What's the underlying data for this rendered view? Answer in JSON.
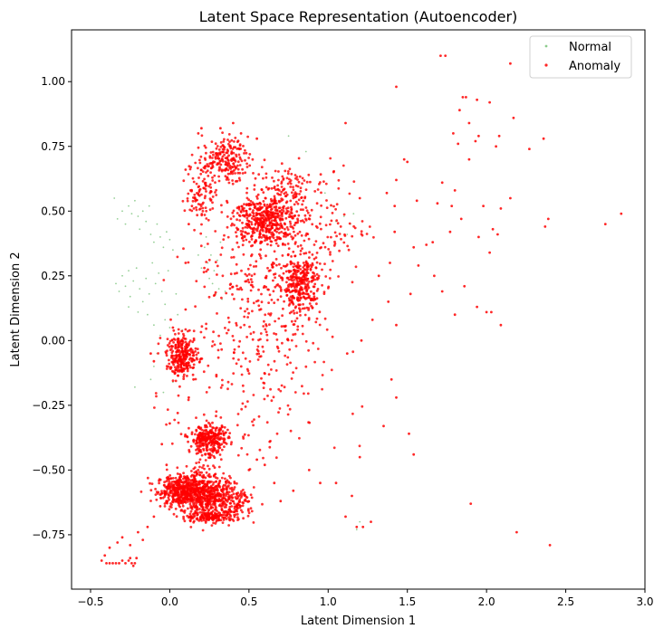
{
  "chart_data": {
    "type": "scatter",
    "title": "Latent Space Representation (Autoencoder)",
    "xlabel": "Latent Dimension 1",
    "ylabel": "Latent Dimension 2",
    "xlim": [
      -0.62,
      3.0
    ],
    "ylim": [
      -0.96,
      1.2
    ],
    "xticks": [
      -0.5,
      0.0,
      0.5,
      1.0,
      1.5,
      2.0,
      2.5,
      3.0
    ],
    "xtick_labels": [
      "−0.5",
      "0.0",
      "0.5",
      "1.0",
      "1.5",
      "2.0",
      "2.5",
      "3.0"
    ],
    "yticks": [
      -0.75,
      -0.5,
      -0.25,
      0.0,
      0.25,
      0.5,
      0.75,
      1.0
    ],
    "ytick_labels": [
      "−0.75",
      "−0.50",
      "−0.25",
      "0.00",
      "0.25",
      "0.50",
      "0.75",
      "1.00"
    ],
    "grid": false,
    "legend_position": "top-right",
    "series": [
      {
        "name": "Normal",
        "color": "#2ca02c",
        "points": [
          [
            -0.35,
            0.55
          ],
          [
            -0.33,
            0.47
          ],
          [
            -0.3,
            0.5
          ],
          [
            -0.28,
            0.45
          ],
          [
            -0.26,
            0.52
          ],
          [
            -0.24,
            0.49
          ],
          [
            -0.22,
            0.54
          ],
          [
            -0.2,
            0.48
          ],
          [
            -0.19,
            0.43
          ],
          [
            -0.17,
            0.5
          ],
          [
            -0.15,
            0.46
          ],
          [
            -0.13,
            0.52
          ],
          [
            -0.12,
            0.41
          ],
          [
            -0.1,
            0.38
          ],
          [
            -0.08,
            0.45
          ],
          [
            -0.06,
            0.4
          ],
          [
            -0.04,
            0.36
          ],
          [
            -0.02,
            0.42
          ],
          [
            0.0,
            0.39
          ],
          [
            0.02,
            0.35
          ],
          [
            -0.34,
            0.22
          ],
          [
            -0.32,
            0.19
          ],
          [
            -0.3,
            0.25
          ],
          [
            -0.28,
            0.21
          ],
          [
            -0.26,
            0.27
          ],
          [
            -0.25,
            0.17
          ],
          [
            -0.23,
            0.23
          ],
          [
            -0.21,
            0.28
          ],
          [
            -0.19,
            0.2
          ],
          [
            -0.17,
            0.15
          ],
          [
            -0.15,
            0.24
          ],
          [
            -0.13,
            0.18
          ],
          [
            -0.11,
            0.3
          ],
          [
            -0.09,
            0.22
          ],
          [
            -0.07,
            0.26
          ],
          [
            -0.05,
            0.19
          ],
          [
            -0.03,
            0.14
          ],
          [
            -0.26,
            0.13
          ],
          [
            -0.2,
            0.11
          ],
          [
            -0.14,
            0.1
          ],
          [
            -0.1,
            0.06
          ],
          [
            -0.06,
            0.02
          ],
          [
            -0.03,
            0.08
          ],
          [
            0.0,
            0.05
          ],
          [
            -0.08,
            -0.05
          ],
          [
            -0.1,
            -0.1
          ],
          [
            -0.12,
            -0.15
          ],
          [
            -0.22,
            -0.18
          ],
          [
            -0.04,
            -0.2
          ],
          [
            0.02,
            -0.16
          ],
          [
            0.22,
            0.36
          ],
          [
            0.24,
            0.3
          ],
          [
            0.26,
            0.33
          ],
          [
            0.28,
            0.27
          ],
          [
            0.3,
            0.31
          ],
          [
            0.27,
            0.22
          ],
          [
            0.29,
            0.18
          ],
          [
            0.31,
            0.2
          ],
          [
            0.33,
            0.16
          ],
          [
            0.25,
            0.24
          ],
          [
            0.2,
            0.28
          ],
          [
            0.18,
            0.33
          ],
          [
            0.32,
            0.38
          ],
          [
            0.23,
            0.4
          ],
          [
            0.35,
            0.19
          ],
          [
            0.75,
            0.79
          ],
          [
            0.86,
            0.73
          ],
          [
            0.98,
            0.57
          ],
          [
            1.02,
            0.52
          ],
          [
            1.1,
            0.48
          ],
          [
            1.14,
            0.45
          ],
          [
            1.16,
            0.49
          ],
          [
            1.12,
            0.41
          ],
          [
            1.05,
            0.46
          ],
          [
            1.18,
            -0.73
          ],
          [
            1.2,
            -0.7
          ],
          [
            0.05,
            0.1
          ],
          [
            0.08,
            0.04
          ],
          [
            -0.01,
            0.27
          ],
          [
            0.04,
            0.18
          ]
        ]
      },
      {
        "name": "Anomaly",
        "color": "#ff0000",
        "clusters": [
          {
            "cx": 0.08,
            "cy": -0.58,
            "sx": 0.08,
            "sy": 0.03,
            "n": 450
          },
          {
            "cx": 0.24,
            "cy": -0.6,
            "sx": 0.09,
            "sy": 0.04,
            "n": 450
          },
          {
            "cx": 0.26,
            "cy": -0.68,
            "sx": 0.08,
            "sy": 0.01,
            "n": 150
          },
          {
            "cx": 0.42,
            "cy": -0.63,
            "sx": 0.06,
            "sy": 0.03,
            "n": 110
          },
          {
            "cx": 0.25,
            "cy": -0.38,
            "sx": 0.06,
            "sy": 0.025,
            "n": 260
          },
          {
            "cx": 0.22,
            "cy": -0.43,
            "sx": 0.05,
            "sy": 0.04,
            "n": 70
          },
          {
            "cx": 0.08,
            "cy": -0.06,
            "sx": 0.05,
            "sy": 0.04,
            "n": 280
          },
          {
            "cx": 0.6,
            "cy": 0.47,
            "sx": 0.1,
            "sy": 0.05,
            "n": 480
          },
          {
            "cx": 0.82,
            "cy": 0.22,
            "sx": 0.07,
            "sy": 0.06,
            "n": 330
          },
          {
            "cx": 0.35,
            "cy": 0.7,
            "sx": 0.07,
            "sy": 0.04,
            "n": 200
          },
          {
            "cx": 0.2,
            "cy": 0.58,
            "sx": 0.05,
            "sy": 0.06,
            "n": 100
          },
          {
            "cx": 0.55,
            "cy": 0.2,
            "sx": 0.2,
            "sy": 0.18,
            "n": 260
          },
          {
            "cx": 0.5,
            "cy": -0.2,
            "sx": 0.25,
            "sy": 0.2,
            "n": 160
          },
          {
            "cx": 0.95,
            "cy": 0.45,
            "sx": 0.15,
            "sy": 0.12,
            "n": 120
          },
          {
            "cx": 0.75,
            "cy": 0.6,
            "sx": 0.08,
            "sy": 0.05,
            "n": 80
          }
        ],
        "points": [
          [
            -0.43,
            -0.85
          ],
          [
            -0.41,
            -0.83
          ],
          [
            -0.4,
            -0.86
          ],
          [
            -0.38,
            -0.86
          ],
          [
            -0.36,
            -0.86
          ],
          [
            -0.34,
            -0.86
          ],
          [
            -0.32,
            -0.86
          ],
          [
            -0.3,
            -0.85
          ],
          [
            -0.28,
            -0.86
          ],
          [
            -0.26,
            -0.85
          ],
          [
            -0.24,
            -0.86
          ],
          [
            -0.22,
            -0.86
          ],
          [
            -0.21,
            -0.84
          ],
          [
            -0.23,
            -0.87
          ],
          [
            -0.25,
            -0.84
          ],
          [
            -0.38,
            -0.8
          ],
          [
            -0.33,
            -0.78
          ],
          [
            -0.3,
            -0.76
          ],
          [
            -0.25,
            -0.79
          ],
          [
            -0.2,
            -0.74
          ],
          [
            -0.17,
            -0.77
          ],
          [
            -0.14,
            -0.72
          ],
          [
            -0.1,
            -0.68
          ],
          [
            -0.06,
            -0.64
          ],
          [
            -0.02,
            -0.62
          ],
          [
            1.71,
            1.1
          ],
          [
            1.74,
            1.1
          ],
          [
            2.15,
            1.07
          ],
          [
            1.43,
            0.98
          ],
          [
            1.85,
            0.94
          ],
          [
            1.87,
            0.94
          ],
          [
            1.94,
            0.93
          ],
          [
            2.02,
            0.92
          ],
          [
            1.83,
            0.89
          ],
          [
            2.17,
            0.86
          ],
          [
            1.89,
            0.84
          ],
          [
            1.11,
            0.84
          ],
          [
            1.79,
            0.8
          ],
          [
            1.95,
            0.79
          ],
          [
            2.08,
            0.79
          ],
          [
            2.36,
            0.78
          ],
          [
            1.93,
            0.77
          ],
          [
            1.82,
            0.76
          ],
          [
            2.06,
            0.75
          ],
          [
            2.27,
            0.74
          ],
          [
            1.48,
            0.7
          ],
          [
            1.5,
            0.69
          ],
          [
            1.89,
            0.7
          ],
          [
            1.72,
            0.61
          ],
          [
            1.43,
            0.62
          ],
          [
            1.8,
            0.58
          ],
          [
            2.15,
            0.55
          ],
          [
            1.37,
            0.57
          ],
          [
            1.42,
            0.52
          ],
          [
            1.56,
            0.54
          ],
          [
            1.69,
            0.53
          ],
          [
            1.78,
            0.52
          ],
          [
            1.98,
            0.52
          ],
          [
            2.09,
            0.51
          ],
          [
            2.85,
            0.49
          ],
          [
            2.39,
            0.47
          ],
          [
            2.75,
            0.45
          ],
          [
            2.37,
            0.44
          ],
          [
            2.04,
            0.43
          ],
          [
            2.07,
            0.41
          ],
          [
            1.84,
            0.47
          ],
          [
            1.66,
            0.38
          ],
          [
            1.77,
            0.42
          ],
          [
            1.42,
            0.42
          ],
          [
            1.62,
            0.37
          ],
          [
            1.95,
            0.4
          ],
          [
            2.02,
            0.34
          ],
          [
            1.54,
            0.36
          ],
          [
            1.39,
            0.3
          ],
          [
            1.67,
            0.25
          ],
          [
            1.57,
            0.29
          ],
          [
            1.86,
            0.21
          ],
          [
            1.72,
            0.19
          ],
          [
            1.52,
            0.18
          ],
          [
            1.94,
            0.13
          ],
          [
            2.0,
            0.11
          ],
          [
            2.03,
            0.11
          ],
          [
            1.8,
            0.1
          ],
          [
            2.09,
            0.06
          ],
          [
            1.43,
            0.06
          ],
          [
            1.38,
            0.15
          ],
          [
            1.32,
            0.25
          ],
          [
            1.28,
            0.08
          ],
          [
            1.21,
            0.0
          ],
          [
            1.12,
            -0.05
          ],
          [
            1.4,
            -0.15
          ],
          [
            1.43,
            -0.22
          ],
          [
            1.35,
            -0.33
          ],
          [
            1.51,
            -0.36
          ],
          [
            1.54,
            -0.44
          ],
          [
            1.2,
            -0.45
          ],
          [
            1.27,
            -0.7
          ],
          [
            1.18,
            -0.72
          ],
          [
            1.22,
            -0.72
          ],
          [
            1.11,
            -0.68
          ],
          [
            1.9,
            -0.63
          ],
          [
            2.19,
            -0.74
          ],
          [
            2.4,
            -0.79
          ],
          [
            1.15,
            -0.6
          ],
          [
            1.05,
            -0.55
          ],
          [
            0.95,
            -0.55
          ],
          [
            0.88,
            -0.5
          ],
          [
            0.78,
            -0.58
          ],
          [
            0.7,
            -0.62
          ],
          [
            0.66,
            -0.55
          ],
          [
            0.6,
            -0.48
          ],
          [
            0.55,
            -0.46
          ],
          [
            0.5,
            -0.5
          ],
          [
            0.0,
            -0.32
          ],
          [
            -0.02,
            -0.48
          ],
          [
            -0.05,
            -0.4
          ],
          [
            0.05,
            -0.28
          ],
          [
            0.12,
            -0.22
          ],
          [
            0.15,
            -0.15
          ],
          [
            -0.12,
            -0.05
          ],
          [
            -0.1,
            -0.08
          ],
          [
            -0.06,
            0.01
          ],
          [
            0.02,
            0.05
          ],
          [
            0.1,
            0.12
          ],
          [
            0.1,
            0.3
          ],
          [
            0.12,
            0.45
          ],
          [
            0.14,
            0.52
          ],
          [
            0.1,
            0.66
          ],
          [
            0.18,
            0.8
          ],
          [
            0.2,
            0.82
          ],
          [
            0.4,
            0.84
          ],
          [
            0.32,
            0.82
          ],
          [
            0.45,
            0.8
          ],
          [
            0.55,
            0.78
          ],
          [
            1.2,
            0.55
          ]
        ]
      }
    ]
  }
}
